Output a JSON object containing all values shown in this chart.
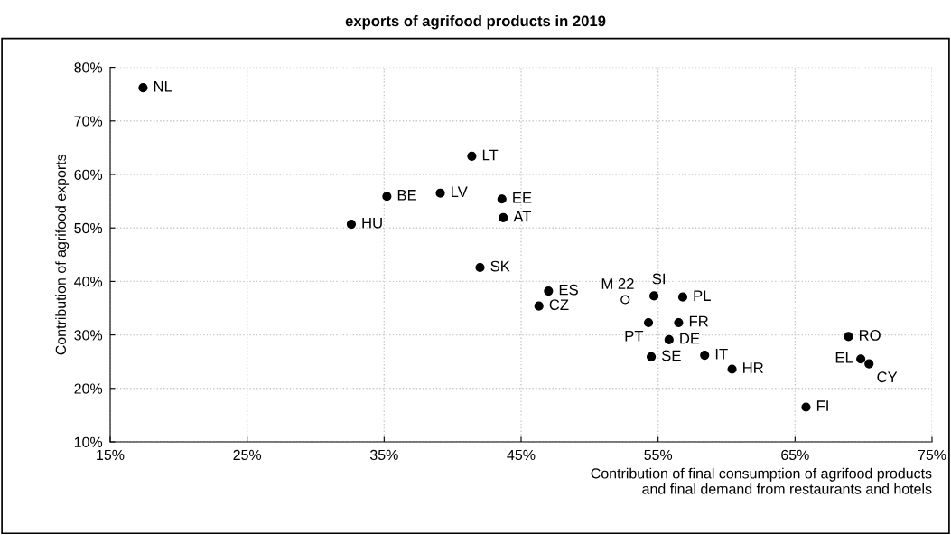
{
  "chart_data": {
    "type": "scatter",
    "title": "exports of agrifood products in 2019",
    "xlabel": "Contribution of final consumption of agrifood products\nand final demand from restaurants and hotels",
    "ylabel": "Contribution of agrifood exports",
    "series": [
      {
        "color": "#000000",
        "x": [
          17.4,
          41.4,
          35.2,
          39.1,
          43.6,
          43.7,
          32.6,
          42.0,
          47.0,
          46.3,
          54.7,
          56.8,
          54.3,
          56.5,
          55.8,
          54.5,
          58.4,
          60.4,
          68.9,
          69.8,
          70.4,
          65.8
        ],
        "values": [
          76.2,
          63.4,
          55.9,
          56.5,
          55.4,
          51.9,
          50.7,
          42.6,
          38.2,
          35.4,
          37.3,
          37.1,
          32.3,
          32.3,
          29.1,
          25.9,
          26.2,
          23.6,
          29.7,
          25.5,
          24.6,
          16.5
        ]
      },
      {
        "color": "#ffffff",
        "x": [
          52.6
        ],
        "values": [
          36.6
        ]
      }
    ],
    "annotations": [
      {
        "text": "NL",
        "x": 17.4,
        "y": 76.2
      },
      {
        "text": "LT",
        "x": 41.4,
        "y": 63.4
      },
      {
        "text": "BE",
        "x": 35.2,
        "y": 55.9
      },
      {
        "text": "LV",
        "x": 39.1,
        "y": 56.5
      },
      {
        "text": "EE",
        "x": 43.6,
        "y": 55.4
      },
      {
        "text": "AT",
        "x": 43.7,
        "y": 51.9
      },
      {
        "text": "HU",
        "x": 32.6,
        "y": 50.7
      },
      {
        "text": "SK",
        "x": 42.0,
        "y": 42.6
      },
      {
        "text": "ES",
        "x": 47.0,
        "y": 38.2
      },
      {
        "text": "CZ",
        "x": 46.3,
        "y": 35.4
      },
      {
        "text": "SI",
        "x": 54.7,
        "y": 37.3
      },
      {
        "text": "PL",
        "x": 56.8,
        "y": 37.1
      },
      {
        "text": "PT",
        "x": 54.3,
        "y": 32.3
      },
      {
        "text": "FR",
        "x": 56.5,
        "y": 32.3
      },
      {
        "text": "DE",
        "x": 55.8,
        "y": 29.1
      },
      {
        "text": "SE",
        "x": 54.5,
        "y": 25.9
      },
      {
        "text": "IT",
        "x": 58.4,
        "y": 26.2
      },
      {
        "text": "HR",
        "x": 60.4,
        "y": 23.6
      },
      {
        "text": "RO",
        "x": 68.9,
        "y": 29.7
      },
      {
        "text": "EL",
        "x": 69.8,
        "y": 25.5
      },
      {
        "text": "CY",
        "x": 70.4,
        "y": 24.6
      },
      {
        "text": "FI",
        "x": 65.8,
        "y": 16.5
      },
      {
        "text": "M 22",
        "x": 52.6,
        "y": 36.6
      }
    ],
    "xlim": [
      15,
      75
    ],
    "xticks": [
      {
        "value": 15,
        "label": "15%"
      },
      {
        "value": 25,
        "label": "25%"
      },
      {
        "value": 35,
        "label": "35%"
      },
      {
        "value": 45,
        "label": "45%"
      },
      {
        "value": 55,
        "label": "55%"
      },
      {
        "value": 65,
        "label": "65%"
      },
      {
        "value": 75,
        "label": "75%"
      }
    ],
    "ylim": [
      10,
      80
    ],
    "yticks": [
      {
        "value": 10,
        "label": "10%"
      },
      {
        "value": 20,
        "label": "20%"
      },
      {
        "value": 30,
        "label": "30%"
      },
      {
        "value": 40,
        "label": "40%"
      },
      {
        "value": 50,
        "label": "50%"
      },
      {
        "value": 60,
        "label": "60%"
      },
      {
        "value": 70,
        "label": "70%"
      },
      {
        "value": 80,
        "label": "80%"
      }
    ],
    "grid": true,
    "marker": "circle"
  }
}
